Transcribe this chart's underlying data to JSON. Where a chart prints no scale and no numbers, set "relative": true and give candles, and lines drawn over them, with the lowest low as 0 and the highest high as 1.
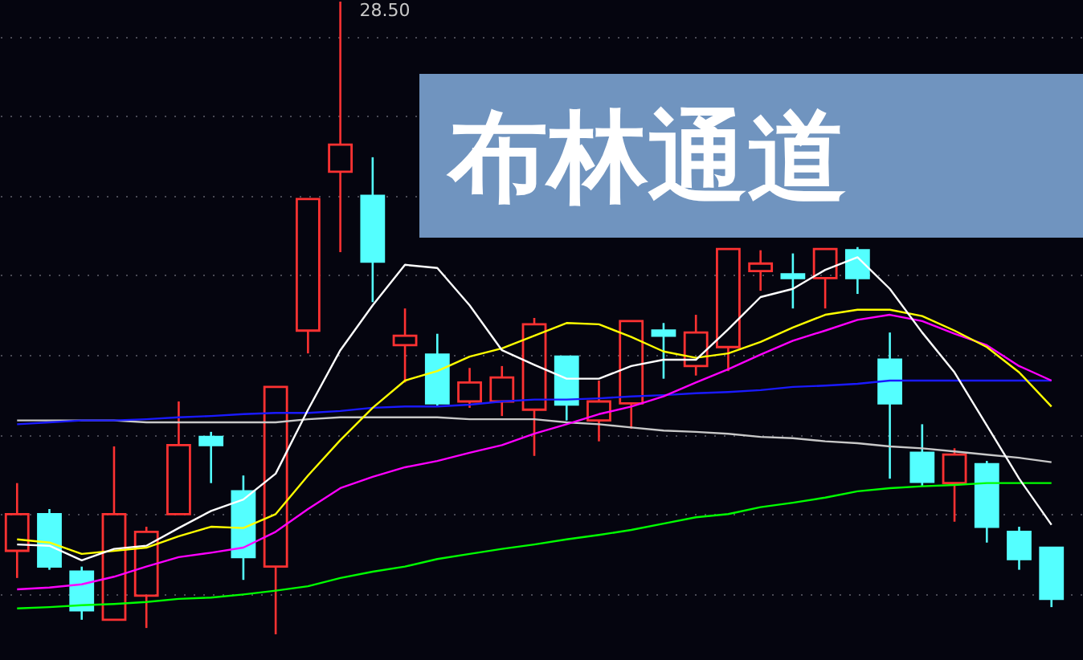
{
  "chart_data": {
    "type": "candlestick",
    "title": "布林通道",
    "relative": true,
    "grid": "y",
    "categories": [
      null,
      null,
      null,
      null,
      null,
      null,
      null,
      null,
      null,
      null,
      null,
      null,
      null,
      null,
      null,
      null,
      null,
      null,
      null,
      null,
      null,
      null,
      null,
      null,
      null,
      null,
      null,
      null,
      null,
      null,
      null,
      null,
      null
    ],
    "ohlc": [
      [
        0.132,
        0.239,
        0.089,
        0.19
      ],
      [
        0.19,
        0.198,
        0.102,
        0.107
      ],
      [
        0.099,
        0.107,
        0.023,
        0.038
      ],
      [
        0.023,
        0.297,
        0.023,
        0.19
      ],
      [
        0.061,
        0.17,
        0.01,
        0.162
      ],
      [
        0.19,
        0.368,
        0.19,
        0.299
      ],
      [
        0.312,
        0.32,
        0.239,
        0.299
      ],
      [
        0.226,
        0.251,
        0.086,
        0.122
      ],
      [
        0.107,
        0.391,
        0,
        0.391
      ],
      [
        0.48,
        0.688,
        0.444,
        0.688
      ],
      [
        0.731,
        1,
        0.604,
        0.774
      ],
      [
        0.693,
        0.754,
        0.525,
        0.589
      ],
      [
        0.457,
        0.515,
        0.398,
        0.472
      ],
      [
        0.442,
        0.475,
        0.36,
        0.365
      ],
      [
        0.368,
        0.421,
        0.358,
        0.398
      ],
      [
        0.368,
        0.424,
        0.345,
        0.406
      ],
      [
        0.355,
        0.5,
        0.282,
        0.49
      ],
      [
        0.439,
        0.439,
        0.338,
        0.363
      ],
      [
        0.338,
        0.401,
        0.305,
        0.368
      ],
      [
        0.365,
        0.495,
        0.325,
        0.495
      ],
      [
        0.48,
        0.492,
        0.404,
        0.472
      ],
      [
        0.424,
        0.505,
        0.409,
        0.477
      ],
      [
        0.454,
        0.609,
        0.416,
        0.609
      ],
      [
        0.574,
        0.607,
        0.543,
        0.586
      ],
      [
        0.569,
        0.602,
        0.515,
        0.563
      ],
      [
        0.563,
        0.609,
        0.515,
        0.609
      ],
      [
        0.607,
        0.612,
        0.538,
        0.563
      ],
      [
        0.434,
        0.477,
        0.246,
        0.365
      ],
      [
        0.287,
        0.332,
        0.234,
        0.241
      ],
      [
        0.239,
        0.294,
        0.178,
        0.284
      ],
      [
        0.269,
        0.274,
        0.145,
        0.17
      ],
      [
        0.162,
        0.17,
        0.102,
        0.119
      ],
      [
        0.137,
        0.137,
        0.043,
        0.056
      ]
    ],
    "colors": [
      "#ff3232",
      "#54ffff",
      "#54ffff",
      "#ff3232",
      "#ff3232",
      "#ff3232",
      "#54ffff",
      "#54ffff",
      "#ff3232",
      "#ff3232",
      "#ff3232",
      "#54ffff",
      "#ff3232",
      "#54ffff",
      "#ff3232",
      "#ff3232",
      "#ff3232",
      "#54ffff",
      "#ff3232",
      "#ff3232",
      "#54ffff",
      "#ff3232",
      "#ff3232",
      "#ff3232",
      "#54ffff",
      "#ff3232",
      "#54ffff",
      "#54ffff",
      "#54ffff",
      "#ff3232",
      "#54ffff",
      "#54ffff",
      "#54ffff"
    ],
    "series": [
      {
        "type": "line",
        "color": "#00ff00",
        "values": [
          0.041,
          0.043,
          0.046,
          0.048,
          0.051,
          0.056,
          0.058,
          0.063,
          0.069,
          0.076,
          0.089,
          0.099,
          0.107,
          0.119,
          0.127,
          0.135,
          0.142,
          0.15,
          0.157,
          0.165,
          0.175,
          0.185,
          0.19,
          0.201,
          0.208,
          0.216,
          0.226,
          0.231,
          0.234,
          0.236,
          0.239,
          0.239,
          0.239
        ]
      },
      {
        "type": "line",
        "color": "#c8c8c8",
        "values": [
          0.338,
          0.338,
          0.338,
          0.338,
          0.335,
          0.335,
          0.335,
          0.335,
          0.335,
          0.34,
          0.343,
          0.343,
          0.343,
          0.343,
          0.34,
          0.34,
          0.34,
          0.335,
          0.332,
          0.327,
          0.322,
          0.32,
          0.317,
          0.312,
          0.31,
          0.305,
          0.302,
          0.297,
          0.294,
          0.289,
          0.284,
          0.279,
          0.272
        ]
      },
      {
        "type": "line",
        "color": "#1a1aff",
        "values": [
          0.332,
          0.335,
          0.338,
          0.338,
          0.34,
          0.343,
          0.345,
          0.348,
          0.35,
          0.35,
          0.353,
          0.358,
          0.36,
          0.36,
          0.363,
          0.368,
          0.371,
          0.371,
          0.373,
          0.376,
          0.378,
          0.381,
          0.383,
          0.386,
          0.391,
          0.393,
          0.396,
          0.401,
          0.401,
          0.401,
          0.401,
          0.401,
          0.401
        ]
      },
      {
        "type": "line",
        "color": "#ff00ff",
        "values": [
          0.071,
          0.074,
          0.079,
          0.091,
          0.107,
          0.122,
          0.129,
          0.137,
          0.162,
          0.198,
          0.231,
          0.249,
          0.264,
          0.274,
          0.287,
          0.299,
          0.317,
          0.332,
          0.348,
          0.36,
          0.376,
          0.398,
          0.419,
          0.442,
          0.464,
          0.48,
          0.497,
          0.505,
          0.495,
          0.475,
          0.457,
          0.424,
          0.401
        ]
      },
      {
        "type": "line",
        "color": "#ffff00",
        "values": [
          0.15,
          0.145,
          0.127,
          0.132,
          0.137,
          0.155,
          0.17,
          0.168,
          0.19,
          0.251,
          0.307,
          0.358,
          0.401,
          0.416,
          0.439,
          0.452,
          0.472,
          0.492,
          0.49,
          0.47,
          0.447,
          0.437,
          0.444,
          0.462,
          0.485,
          0.505,
          0.513,
          0.513,
          0.503,
          0.48,
          0.454,
          0.414,
          0.36
        ]
      },
      {
        "type": "line",
        "color": "#ffffff",
        "values": [
          0.142,
          0.14,
          0.117,
          0.135,
          0.14,
          0.168,
          0.195,
          0.213,
          0.254,
          0.355,
          0.449,
          0.52,
          0.584,
          0.579,
          0.52,
          0.449,
          0.426,
          0.404,
          0.404,
          0.424,
          0.434,
          0.434,
          0.482,
          0.533,
          0.546,
          0.576,
          0.596,
          0.546,
          0.477,
          0.414,
          0.33,
          0.246,
          0.173
        ]
      }
    ],
    "annotations": [
      "28.50"
    ]
  }
}
